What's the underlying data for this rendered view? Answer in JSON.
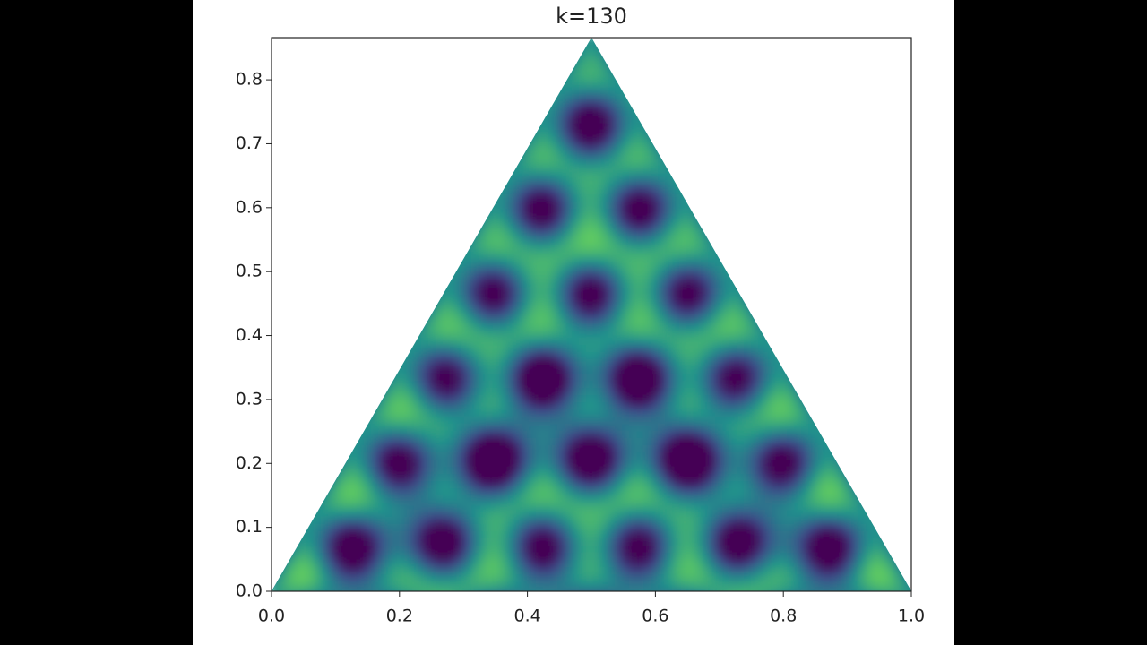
{
  "chart_data": {
    "type": "field",
    "title": "k=130",
    "domain_x": [
      0,
      1,
      0.5
    ],
    "domain_y": [
      0,
      0,
      0.866
    ],
    "xlim": [
      0,
      1
    ],
    "ylim": [
      0,
      0.866
    ],
    "xticks": [
      {
        "value": 0,
        "label": "0.0"
      },
      0.2,
      0.4,
      0.6,
      0.8,
      {
        "value": 1,
        "label": "1.0"
      }
    ],
    "yticks": [
      {
        "value": 0,
        "label": "0.0"
      },
      0.1,
      0.2,
      0.3,
      0.4,
      0.5,
      0.6,
      0.7,
      0.8
    ]
  }
}
